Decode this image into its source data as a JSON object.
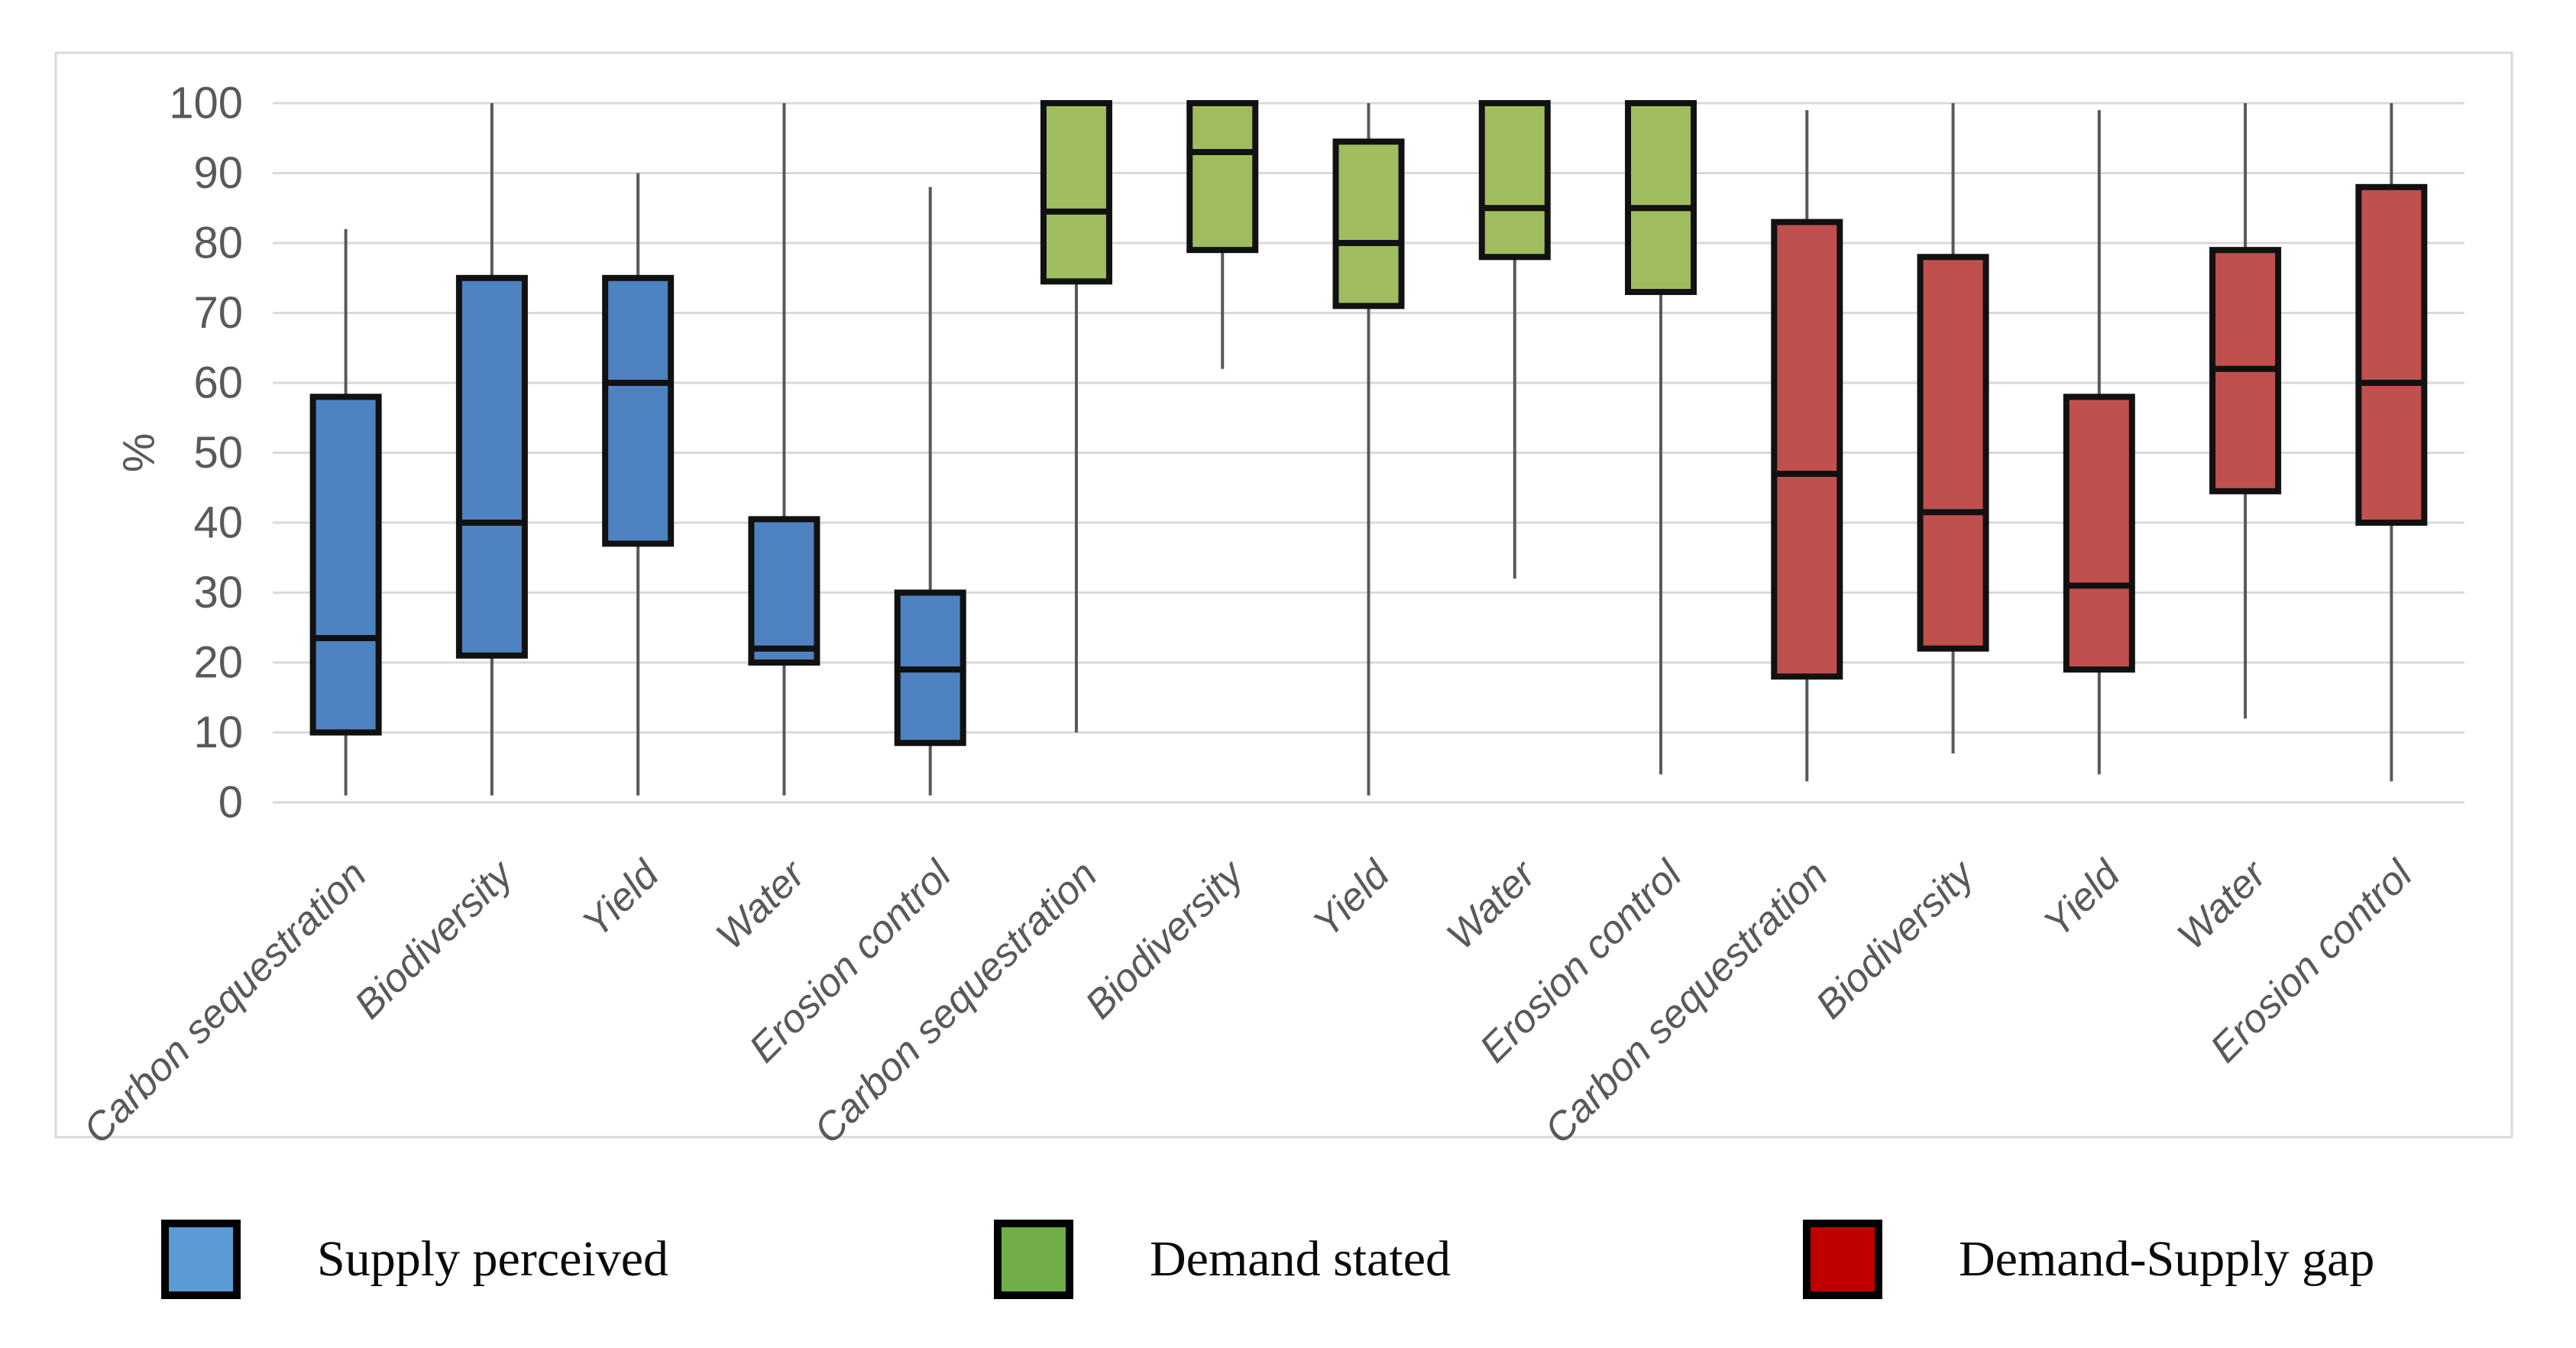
{
  "figure": {
    "background": "#ffffff",
    "plot_border_color": "#d9d9d9",
    "gridline_color": "#d9d9d9",
    "axis_text_color": "#595959",
    "box_outline_color": "#111111",
    "whisker_color": "#595959"
  },
  "chart_data": {
    "type": "boxplot",
    "title": "",
    "xlabel": "",
    "ylabel": "%",
    "ylim": [
      0,
      100
    ],
    "yticks": [
      0,
      10,
      20,
      30,
      40,
      50,
      60,
      70,
      80,
      90,
      100
    ],
    "grid": true,
    "categories": [
      "Carbon sequestration",
      "Biodiversity",
      "Yield",
      "Water",
      "Erosion control"
    ],
    "series": [
      {
        "name": "Supply perceived",
        "color": "#4e82c0",
        "boxes": [
          {
            "category": "Carbon sequestration",
            "min": 1,
            "q1": 10,
            "median": 23.5,
            "q3": 58,
            "max": 82
          },
          {
            "category": "Biodiversity",
            "min": 1,
            "q1": 21,
            "median": 40,
            "q3": 75,
            "max": 100
          },
          {
            "category": "Yield",
            "min": 1,
            "q1": 37,
            "median": 60,
            "q3": 75,
            "max": 90
          },
          {
            "category": "Water",
            "min": 1,
            "q1": 20,
            "median": 22,
            "q3": 40.5,
            "max": 100
          },
          {
            "category": "Erosion control",
            "min": 1,
            "q1": 8.5,
            "median": 19,
            "q3": 30,
            "max": 88
          }
        ]
      },
      {
        "name": "Demand stated",
        "color": "#9fbd5e",
        "boxes": [
          {
            "category": "Carbon sequestration",
            "min": 10,
            "q1": 74.5,
            "median": 84.5,
            "q3": 100,
            "max": 100
          },
          {
            "category": "Biodiversity",
            "min": 62,
            "q1": 79,
            "median": 93,
            "q3": 100,
            "max": 100
          },
          {
            "category": "Yield",
            "min": 1,
            "q1": 71,
            "median": 80,
            "q3": 94.5,
            "max": 100
          },
          {
            "category": "Water",
            "min": 32,
            "q1": 78,
            "median": 85,
            "q3": 100,
            "max": 100
          },
          {
            "category": "Erosion control",
            "min": 4,
            "q1": 73,
            "median": 85,
            "q3": 100,
            "max": 100
          }
        ]
      },
      {
        "name": "Demand-Supply gap",
        "color": "#c0504d",
        "boxes": [
          {
            "category": "Carbon sequestration",
            "min": 3,
            "q1": 18,
            "median": 47,
            "q3": 83,
            "max": 99
          },
          {
            "category": "Biodiversity",
            "min": 7,
            "q1": 22,
            "median": 41.5,
            "q3": 78,
            "max": 100
          },
          {
            "category": "Yield",
            "min": 4,
            "q1": 19,
            "median": 31,
            "q3": 58,
            "max": 99
          },
          {
            "category": "Water",
            "min": 12,
            "q1": 44.5,
            "median": 62,
            "q3": 79,
            "max": 100
          },
          {
            "category": "Erosion control",
            "min": 3,
            "q1": 40,
            "median": 60,
            "q3": 88,
            "max": 100
          }
        ]
      }
    ],
    "legend": {
      "position": "bottom",
      "items": [
        {
          "label": "Supply perceived",
          "swatch_color": "#5b9bd5"
        },
        {
          "label": "Demand stated",
          "swatch_color": "#70ad47"
        },
        {
          "label": "Demand-Supply gap",
          "swatch_color": "#c00000"
        }
      ]
    }
  }
}
